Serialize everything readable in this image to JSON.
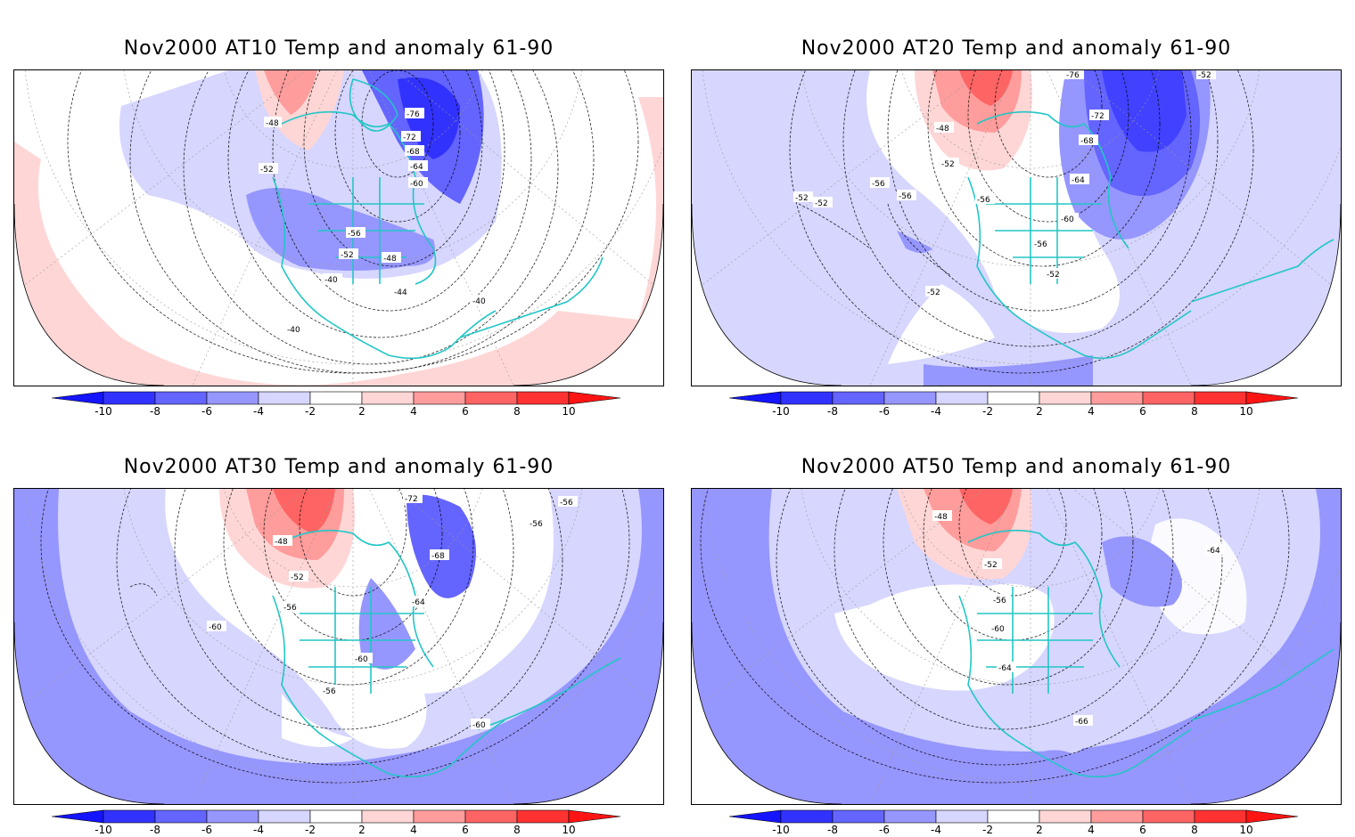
{
  "panels": [
    {
      "title": "Nov2000 AT10 Temp and anomaly 61-90",
      "contour_labels": [
        "-76",
        "-72",
        "-68",
        "-64",
        "-60",
        "-48",
        "-52",
        "-56",
        "-52",
        "-48",
        "-40",
        "-44",
        "-40",
        "-40"
      ],
      "anomaly_regions": [
        {
          "sign": "negative",
          "level": 8,
          "where": "Baffin Bay / Greenland"
        },
        {
          "sign": "negative",
          "level": 4,
          "where": "central North America"
        },
        {
          "sign": "positive",
          "level": 4,
          "where": "Alaska / Yukon"
        },
        {
          "sign": "positive",
          "level": 2,
          "where": "southern subtropical band"
        }
      ]
    },
    {
      "title": "Nov2000 AT20 Temp and anomaly 61-90",
      "contour_labels": [
        "-76",
        "-52",
        "-72",
        "-68",
        "-48",
        "-64",
        "-52",
        "-56",
        "-56",
        "-52",
        "-52",
        "-56",
        "-60",
        "-56",
        "-52",
        "-52"
      ],
      "anomaly_regions": [
        {
          "sign": "negative",
          "level": 8,
          "where": "Greenland / North Atlantic"
        },
        {
          "sign": "positive",
          "level": 6,
          "where": "Alaska / northern Canada"
        },
        {
          "sign": "negative",
          "level": 2,
          "where": "Pacific and tropics"
        }
      ]
    },
    {
      "title": "Nov2000 AT30 Temp and anomaly 61-90",
      "contour_labels": [
        "-72",
        "-56",
        "-56",
        "-48",
        "-68",
        "-52",
        "-56",
        "-64",
        "-60",
        "-60",
        "-56",
        "-60"
      ],
      "anomaly_regions": [
        {
          "sign": "positive",
          "level": 6,
          "where": "Alaska / northern Canada"
        },
        {
          "sign": "negative",
          "level": 6,
          "where": "Greenland"
        },
        {
          "sign": "negative",
          "level": 4,
          "where": "outer subtropical band"
        }
      ]
    },
    {
      "title": "Nov2000 AT50 Temp and anomaly 61-90",
      "contour_labels": [
        "-48",
        "-64",
        "-52",
        "-56",
        "-60",
        "-64",
        "-66"
      ],
      "anomaly_regions": [
        {
          "sign": "positive",
          "level": 6,
          "where": "Alaska / northern Canada"
        },
        {
          "sign": "negative",
          "level": 4,
          "where": "North Atlantic"
        },
        {
          "sign": "negative",
          "level": 4,
          "where": "outer subtropical band"
        }
      ]
    }
  ],
  "colorbar": {
    "labels": [
      "-10",
      "-8",
      "-6",
      "-4",
      "-2",
      "2",
      "4",
      "6",
      "8",
      "10"
    ],
    "colors": [
      "#3232ff",
      "#6464ff",
      "#9696ff",
      "#d6d6ff",
      "#ffffff",
      "#ffd6d6",
      "#ff9c9c",
      "#ff6464",
      "#ff3232",
      "#ff0000"
    ],
    "neg_end": "#1414ff",
    "pos_end": "#ff1414"
  },
  "map_colors": {
    "coastline": "#22c6c6",
    "contour": "#000000",
    "grid": "#999999"
  }
}
